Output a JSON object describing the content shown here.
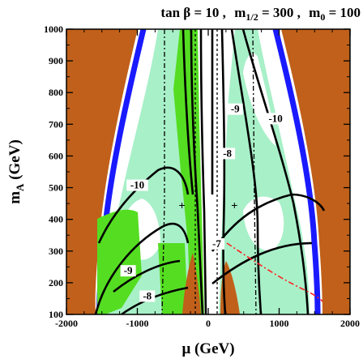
{
  "chart_data": {
    "type": "contour",
    "title_parts": {
      "tanb_label": "tan β = 10 ,",
      "m12_label": "m",
      "m12_sub": "1/2",
      "m12_value": " = 300 ,",
      "m0_label": "m",
      "m0_sub": "0",
      "m0_value": " = 100"
    },
    "xlabel": "μ (GeV)",
    "ylabel_main": "m",
    "ylabel_sub": "A",
    "ylabel_unit": " (GeV)",
    "xlim": [
      -2000,
      2000
    ],
    "ylim": [
      100,
      1000
    ],
    "x_ticks": [
      -2000,
      -1000,
      0,
      1000,
      2000
    ],
    "x_tick_labels": [
      "-2000",
      "-1000",
      "0",
      "1000",
      "2000"
    ],
    "y_ticks": [
      100,
      200,
      300,
      400,
      500,
      600,
      700,
      800,
      900,
      1000
    ],
    "y_tick_labels": [
      "100",
      "200",
      "300",
      "400",
      "500",
      "600",
      "700",
      "800",
      "900",
      "1000"
    ],
    "contour_labels": [
      {
        "text": "-10",
        "x": -1000,
        "y": 500
      },
      {
        "text": "-9",
        "x": 380,
        "y": 740
      },
      {
        "text": "-10",
        "x": 950,
        "y": 710
      },
      {
        "text": "-8",
        "x": 270,
        "y": 600
      },
      {
        "text": "-9",
        "x": -1130,
        "y": 230
      },
      {
        "text": "-8",
        "x": -860,
        "y": 150
      },
      {
        "text": "-7",
        "x": 120,
        "y": 315
      }
    ],
    "markers": [
      {
        "symbol": "+",
        "x": -370,
        "y": 445
      },
      {
        "symbol": "+",
        "x": 370,
        "y": 445
      }
    ],
    "colors": {
      "excluded_brown": "#c0601a",
      "blue_boundary": "#1a1aff",
      "green_band": "#55dd22",
      "light_green": "#a8f0c8",
      "red_dashdot": "#ff2020",
      "contour": "#000000"
    }
  }
}
